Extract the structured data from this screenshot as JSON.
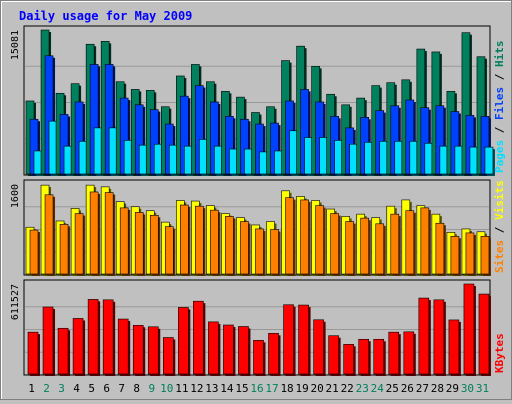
{
  "chart_data": {
    "type": "bar",
    "title": "Daily usage for May 2009",
    "categories": [
      "1",
      "2",
      "3",
      "4",
      "5",
      "6",
      "7",
      "8",
      "9",
      "10",
      "11",
      "12",
      "13",
      "14",
      "15",
      "16",
      "17",
      "18",
      "19",
      "20",
      "21",
      "22",
      "23",
      "24",
      "25",
      "26",
      "27",
      "28",
      "29",
      "30",
      "31"
    ],
    "weekend_days": [
      "2",
      "3",
      "9",
      "10",
      "16",
      "17",
      "23",
      "24",
      "30",
      "31"
    ],
    "panels": [
      {
        "id": "hits-files-pages",
        "ymax": 15081,
        "ymax_label": "15081",
        "legend": [
          {
            "text": "Pages",
            "color": "#00e0ff"
          },
          {
            "text": "Files",
            "color": "#0040ff"
          },
          {
            "text": "Hits",
            "color": "#00805c"
          }
        ],
        "series": [
          {
            "name": "Hits",
            "color": "#00805c",
            "values": [
              7700,
              15081,
              8500,
              9500,
              13600,
              13900,
              9700,
              8900,
              8800,
              7100,
              10300,
              11500,
              9700,
              8700,
              8100,
              6500,
              7100,
              11900,
              13400,
              11300,
              8400,
              7300,
              8000,
              9300,
              9600,
              9900,
              13100,
              12800,
              8700,
              14800,
              12300
            ]
          },
          {
            "name": "Files",
            "color": "#0040ff",
            "values": [
              5800,
              12400,
              6300,
              7600,
              11500,
              11500,
              8000,
              7300,
              6800,
              5300,
              8200,
              9300,
              7600,
              6100,
              5800,
              5300,
              5400,
              7700,
              8900,
              7600,
              6100,
              4900,
              6000,
              6700,
              7200,
              7800,
              7000,
              7200,
              6600,
              6200,
              6100
            ]
          },
          {
            "name": "Pages",
            "color": "#00e0ff",
            "values": [
              2500,
              5600,
              3000,
              3500,
              4900,
              4900,
              3600,
              3100,
              3200,
              3100,
              3000,
              3700,
              3000,
              2700,
              2700,
              2400,
              2500,
              4600,
              3900,
              3900,
              3600,
              3200,
              3400,
              3500,
              3500,
              3500,
              3300,
              3000,
              3000,
              2900,
              2900
            ]
          }
        ]
      },
      {
        "id": "visits-sites",
        "ymax": 1600,
        "ymax_label": "1600",
        "legend": [
          {
            "text": "Sites",
            "color": "#ff8000"
          },
          {
            "text": "Visits",
            "color": "#ffff00"
          }
        ],
        "series": [
          {
            "name": "Visits",
            "color": "#ffff00",
            "values": [
              840,
              1580,
              950,
              1170,
              1580,
              1550,
              1290,
              1200,
              1130,
              930,
              1310,
              1300,
              1220,
              1080,
              1010,
              880,
              940,
              1480,
              1380,
              1310,
              1160,
              1030,
              1070,
              1010,
              1210,
              1320,
              1220,
              1070,
              750,
              810,
              760
            ]
          },
          {
            "name": "Sites",
            "color": "#ff8000",
            "values": [
              790,
              1410,
              890,
              1080,
              1460,
              1450,
              1180,
              1100,
              1050,
              850,
              1230,
              1210,
              1140,
              1030,
              940,
              810,
              800,
              1360,
              1320,
              1220,
              1080,
              940,
              1000,
              900,
              1070,
              1130,
              1180,
              910,
              680,
              740,
              680
            ]
          }
        ]
      },
      {
        "id": "kbytes",
        "ymax": 611527,
        "ymax_label": "611527",
        "legend": [
          {
            "text": "KBytes",
            "color": "#ff0000"
          }
        ],
        "series": [
          {
            "name": "KBytes",
            "color": "#ff0000",
            "values": [
              288000,
              457000,
              314000,
              380000,
              508000,
              505000,
              376000,
              334000,
              324000,
              252000,
              454000,
              496000,
              357000,
              336000,
              326000,
              233000,
              280000,
              472000,
              470000,
              371000,
              264000,
              206000,
              240000,
              240000,
              288000,
              290000,
              517000,
              505000,
              370000,
              611527,
              544000
            ]
          }
        ]
      }
    ]
  }
}
